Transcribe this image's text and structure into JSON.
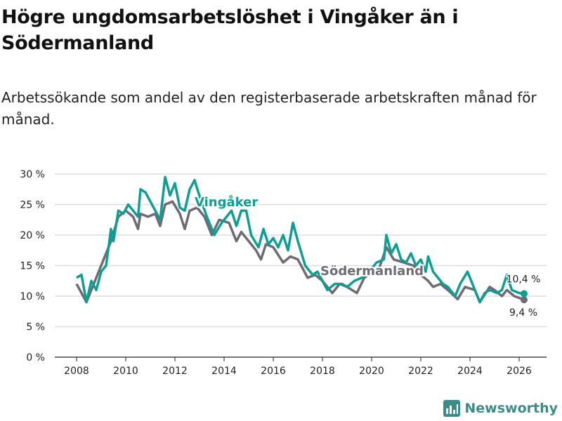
{
  "title": "Högre ungdomsarbetslöshet i Vingåker än i Södermanland",
  "subtitle": "Arbetssökande som andel av den registerbaserade arbetskraften månad för månad.",
  "logo_text": "Newsworthy",
  "colors": {
    "vingaker": "#0f9e94",
    "sodermanland": "#6e6b72",
    "grid": "#dddddd"
  },
  "chart_data": {
    "type": "line",
    "title": "Högre ungdomsarbetslöshet i Vingåker än i Södermanland",
    "ylabel": "",
    "xlabel": "",
    "ylim": [
      0,
      30
    ],
    "xlim": [
      2007.5,
      2026.7
    ],
    "yticks": [
      0,
      5,
      10,
      15,
      20,
      25,
      30
    ],
    "ytick_labels": [
      "0 %",
      "5 %",
      "10 %",
      "15 %",
      "20 %",
      "25 %",
      "30 %"
    ],
    "xticks": [
      2008,
      2010,
      2012,
      2014,
      2016,
      2018,
      2020,
      2022,
      2024,
      2026
    ],
    "xtick_labels": [
      "2008",
      "2010",
      "2012",
      "2014",
      "2016",
      "2018",
      "2020",
      "2022",
      "2024",
      "2026"
    ],
    "grid": true,
    "series": [
      {
        "name": "Vingåker",
        "end_label": "10,4 %",
        "x": [
          2008.0,
          2008.2,
          2008.4,
          2008.6,
          2008.8,
          2009.0,
          2009.2,
          2009.4,
          2009.5,
          2009.7,
          2009.9,
          2010.1,
          2010.3,
          2010.5,
          2010.6,
          2010.8,
          2011.0,
          2011.2,
          2011.4,
          2011.6,
          2011.8,
          2012.0,
          2012.2,
          2012.4,
          2012.6,
          2012.8,
          2012.95,
          2013.3,
          2013.6,
          2013.9,
          2014.3,
          2014.5,
          2014.7,
          2014.9,
          2015.1,
          2015.4,
          2015.6,
          2015.8,
          2016.0,
          2016.2,
          2016.4,
          2016.6,
          2016.8,
          2017.0,
          2017.3,
          2017.6,
          2017.8,
          2018.0,
          2018.2,
          2018.5,
          2018.8,
          2019.0,
          2019.3,
          2019.6,
          2019.9,
          2020.2,
          2020.5,
          2020.6,
          2020.8,
          2021.0,
          2021.2,
          2021.4,
          2021.6,
          2021.8,
          2022.0,
          2022.2,
          2022.3,
          2022.5,
          2022.7,
          2022.9,
          2023.1,
          2023.4,
          2023.6,
          2023.9,
          2024.2,
          2024.4,
          2024.6,
          2024.8,
          2025.1,
          2025.3,
          2025.5,
          2025.7,
          2026.0,
          2026.2
        ],
        "values": [
          13,
          13.5,
          9,
          12.5,
          11,
          14,
          15,
          21,
          19,
          24,
          23.5,
          25,
          24,
          23,
          27.5,
          27,
          25.5,
          24,
          22.5,
          29.5,
          26.5,
          28.5,
          24.5,
          24,
          27.5,
          29,
          27,
          23,
          20,
          22,
          24,
          21.5,
          24,
          24,
          20,
          18,
          21,
          18.5,
          19.5,
          18,
          20,
          17.5,
          22,
          19,
          15,
          13.5,
          14,
          12.5,
          11,
          12,
          12,
          11.5,
          12.5,
          13,
          14,
          15.5,
          16,
          20,
          17,
          18.5,
          16,
          15.5,
          17,
          15,
          16,
          14,
          16.5,
          14,
          13,
          12,
          11.5,
          10,
          12,
          14,
          11,
          9,
          10.5,
          11,
          10.5,
          11,
          13.5,
          11,
          10.5,
          10.4
        ]
      },
      {
        "name": "Södermanland",
        "end_label": "9,4 %",
        "x": [
          2008.0,
          2008.4,
          2008.7,
          2009.0,
          2009.4,
          2009.7,
          2010.0,
          2010.3,
          2010.5,
          2010.6,
          2010.9,
          2011.2,
          2011.4,
          2011.6,
          2011.9,
          2012.2,
          2012.4,
          2012.6,
          2012.9,
          2013.2,
          2013.5,
          2013.8,
          2014.2,
          2014.5,
          2014.7,
          2015.0,
          2015.3,
          2015.5,
          2015.7,
          2016.0,
          2016.4,
          2016.7,
          2017.0,
          2017.4,
          2017.7,
          2018.0,
          2018.4,
          2018.7,
          2019.0,
          2019.4,
          2019.7,
          2020.0,
          2020.3,
          2020.6,
          2020.9,
          2021.3,
          2021.7,
          2022.0,
          2022.3,
          2022.5,
          2022.8,
          2023.1,
          2023.5,
          2023.8,
          2024.2,
          2024.4,
          2024.8,
          2025.0,
          2025.3,
          2025.5,
          2025.8,
          2026.2
        ],
        "values": [
          12,
          9,
          12,
          15,
          19,
          23,
          24,
          23,
          21,
          23.5,
          23,
          23.5,
          21.5,
          25,
          25.5,
          23.5,
          21,
          24,
          24.5,
          23,
          20,
          22.5,
          22,
          19,
          20.5,
          19,
          17.5,
          16,
          18.5,
          18,
          15.5,
          16.5,
          16,
          13,
          13.5,
          12.5,
          10.5,
          12,
          11.5,
          10.5,
          13,
          14,
          14.5,
          18,
          16,
          15.5,
          15,
          13.5,
          12.5,
          11.5,
          12,
          11,
          9.5,
          11.5,
          11,
          9,
          11.5,
          11,
          10,
          11,
          10,
          9.4
        ]
      }
    ]
  }
}
